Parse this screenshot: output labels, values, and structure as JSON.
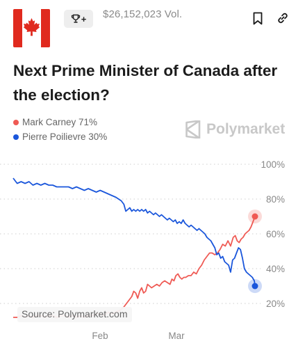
{
  "header": {
    "volume": "$26,152,023 Vol.",
    "flag_icon": "canada-flag-icon",
    "trophy_icon": "trophy-icon",
    "trophy_plus": "+",
    "bookmark_icon": "bookmark-icon",
    "link_icon": "link-icon"
  },
  "title": "Next Prime Minister of Canada after the election?",
  "legend": [
    {
      "label": "Mark Carney 71%",
      "color": "#ef5a54"
    },
    {
      "label": "Pierre Poilievre 30%",
      "color": "#1a56db"
    }
  ],
  "watermark": "Polymarket",
  "source": "Source: Polymarket.com",
  "chart_data": {
    "type": "line",
    "x_ticks": [
      "Feb",
      "Mar"
    ],
    "y_ticks": [
      "100%",
      "80%",
      "60%",
      "40%",
      "20%"
    ],
    "ylim": [
      20,
      100
    ],
    "grid": true,
    "series": [
      {
        "name": "Mark Carney",
        "color": "#ef5a54",
        "points": [
          [
            0,
            12
          ],
          [
            6,
            12
          ],
          [
            12,
            13
          ],
          [
            18,
            12
          ],
          [
            24,
            13
          ],
          [
            30,
            12
          ],
          [
            36,
            13
          ],
          [
            42,
            13
          ],
          [
            48,
            12
          ],
          [
            54,
            13
          ],
          [
            60,
            13
          ],
          [
            66,
            12
          ],
          [
            72,
            13
          ],
          [
            78,
            13
          ],
          [
            84,
            12
          ],
          [
            90,
            13
          ],
          [
            96,
            12
          ],
          [
            102,
            13
          ],
          [
            108,
            12
          ],
          [
            114,
            13
          ],
          [
            120,
            13
          ],
          [
            126,
            14
          ],
          [
            132,
            14
          ],
          [
            138,
            13
          ],
          [
            144,
            15
          ],
          [
            150,
            14
          ],
          [
            156,
            15
          ],
          [
            162,
            16
          ],
          [
            168,
            18
          ],
          [
            172,
            20
          ],
          [
            176,
            22
          ],
          [
            180,
            24
          ],
          [
            183,
            27
          ],
          [
            186,
            26
          ],
          [
            189,
            23
          ],
          [
            192,
            27
          ],
          [
            195,
            29
          ],
          [
            198,
            26
          ],
          [
            201,
            27
          ],
          [
            204,
            31
          ],
          [
            207,
            30
          ],
          [
            210,
            29
          ],
          [
            214,
            30
          ],
          [
            218,
            31
          ],
          [
            222,
            30
          ],
          [
            226,
            32
          ],
          [
            230,
            33
          ],
          [
            234,
            32
          ],
          [
            238,
            31
          ],
          [
            241,
            34
          ],
          [
            244,
            33
          ],
          [
            247,
            36
          ],
          [
            250,
            37
          ],
          [
            253,
            35
          ],
          [
            256,
            34
          ],
          [
            259,
            35
          ],
          [
            262,
            35
          ],
          [
            266,
            36
          ],
          [
            270,
            36
          ],
          [
            274,
            38
          ],
          [
            278,
            37
          ],
          [
            282,
            40
          ],
          [
            286,
            42
          ],
          [
            290,
            45
          ],
          [
            294,
            47
          ],
          [
            298,
            49
          ],
          [
            302,
            49
          ],
          [
            306,
            48
          ],
          [
            310,
            49
          ],
          [
            314,
            51
          ],
          [
            318,
            54
          ],
          [
            322,
            53
          ],
          [
            326,
            56
          ],
          [
            330,
            53
          ],
          [
            334,
            58
          ],
          [
            337,
            59
          ],
          [
            340,
            56
          ],
          [
            343,
            55
          ],
          [
            346,
            57
          ],
          [
            349,
            58
          ],
          [
            352,
            60
          ],
          [
            355,
            61
          ],
          [
            358,
            62
          ],
          [
            361,
            64
          ],
          [
            364,
            67
          ],
          [
            367,
            70
          ]
        ]
      },
      {
        "name": "Pierre Poilievre",
        "color": "#1a56db",
        "points": [
          [
            0,
            92
          ],
          [
            6,
            89
          ],
          [
            12,
            90
          ],
          [
            18,
            89
          ],
          [
            24,
            90
          ],
          [
            30,
            88
          ],
          [
            36,
            89
          ],
          [
            42,
            88
          ],
          [
            48,
            89
          ],
          [
            54,
            88
          ],
          [
            60,
            88
          ],
          [
            66,
            87
          ],
          [
            72,
            87
          ],
          [
            78,
            87
          ],
          [
            84,
            87
          ],
          [
            90,
            86
          ],
          [
            96,
            87
          ],
          [
            102,
            86
          ],
          [
            108,
            85
          ],
          [
            114,
            86
          ],
          [
            120,
            85
          ],
          [
            126,
            84
          ],
          [
            132,
            85
          ],
          [
            138,
            84
          ],
          [
            144,
            83
          ],
          [
            150,
            82
          ],
          [
            156,
            81
          ],
          [
            160,
            80
          ],
          [
            164,
            79
          ],
          [
            168,
            77
          ],
          [
            171,
            73
          ],
          [
            174,
            74
          ],
          [
            177,
            75
          ],
          [
            180,
            73
          ],
          [
            183,
            74
          ],
          [
            186,
            73
          ],
          [
            189,
            74
          ],
          [
            192,
            73
          ],
          [
            195,
            74
          ],
          [
            198,
            73
          ],
          [
            201,
            74
          ],
          [
            204,
            72
          ],
          [
            207,
            73
          ],
          [
            210,
            72
          ],
          [
            213,
            71
          ],
          [
            216,
            72
          ],
          [
            219,
            71
          ],
          [
            222,
            70
          ],
          [
            225,
            71
          ],
          [
            228,
            70
          ],
          [
            231,
            69
          ],
          [
            234,
            68
          ],
          [
            237,
            69
          ],
          [
            240,
            68
          ],
          [
            243,
            67
          ],
          [
            246,
            68
          ],
          [
            249,
            66
          ],
          [
            252,
            67
          ],
          [
            255,
            66
          ],
          [
            258,
            68
          ],
          [
            261,
            66
          ],
          [
            264,
            65
          ],
          [
            267,
            64
          ],
          [
            270,
            65
          ],
          [
            273,
            64
          ],
          [
            276,
            63
          ],
          [
            279,
            62
          ],
          [
            282,
            63
          ],
          [
            285,
            62
          ],
          [
            288,
            61
          ],
          [
            291,
            60
          ],
          [
            294,
            58
          ],
          [
            297,
            57
          ],
          [
            300,
            56
          ],
          [
            303,
            54
          ],
          [
            306,
            52
          ],
          [
            309,
            48
          ],
          [
            312,
            49
          ],
          [
            315,
            46
          ],
          [
            318,
            47
          ],
          [
            321,
            44
          ],
          [
            324,
            43
          ],
          [
            327,
            42
          ],
          [
            330,
            38
          ],
          [
            333,
            45
          ],
          [
            336,
            46
          ],
          [
            339,
            49
          ],
          [
            342,
            52
          ],
          [
            345,
            51
          ],
          [
            348,
            46
          ],
          [
            351,
            40
          ],
          [
            354,
            38
          ],
          [
            357,
            37
          ],
          [
            360,
            36
          ],
          [
            363,
            35
          ],
          [
            366,
            33
          ],
          [
            367,
            30
          ]
        ]
      }
    ]
  }
}
